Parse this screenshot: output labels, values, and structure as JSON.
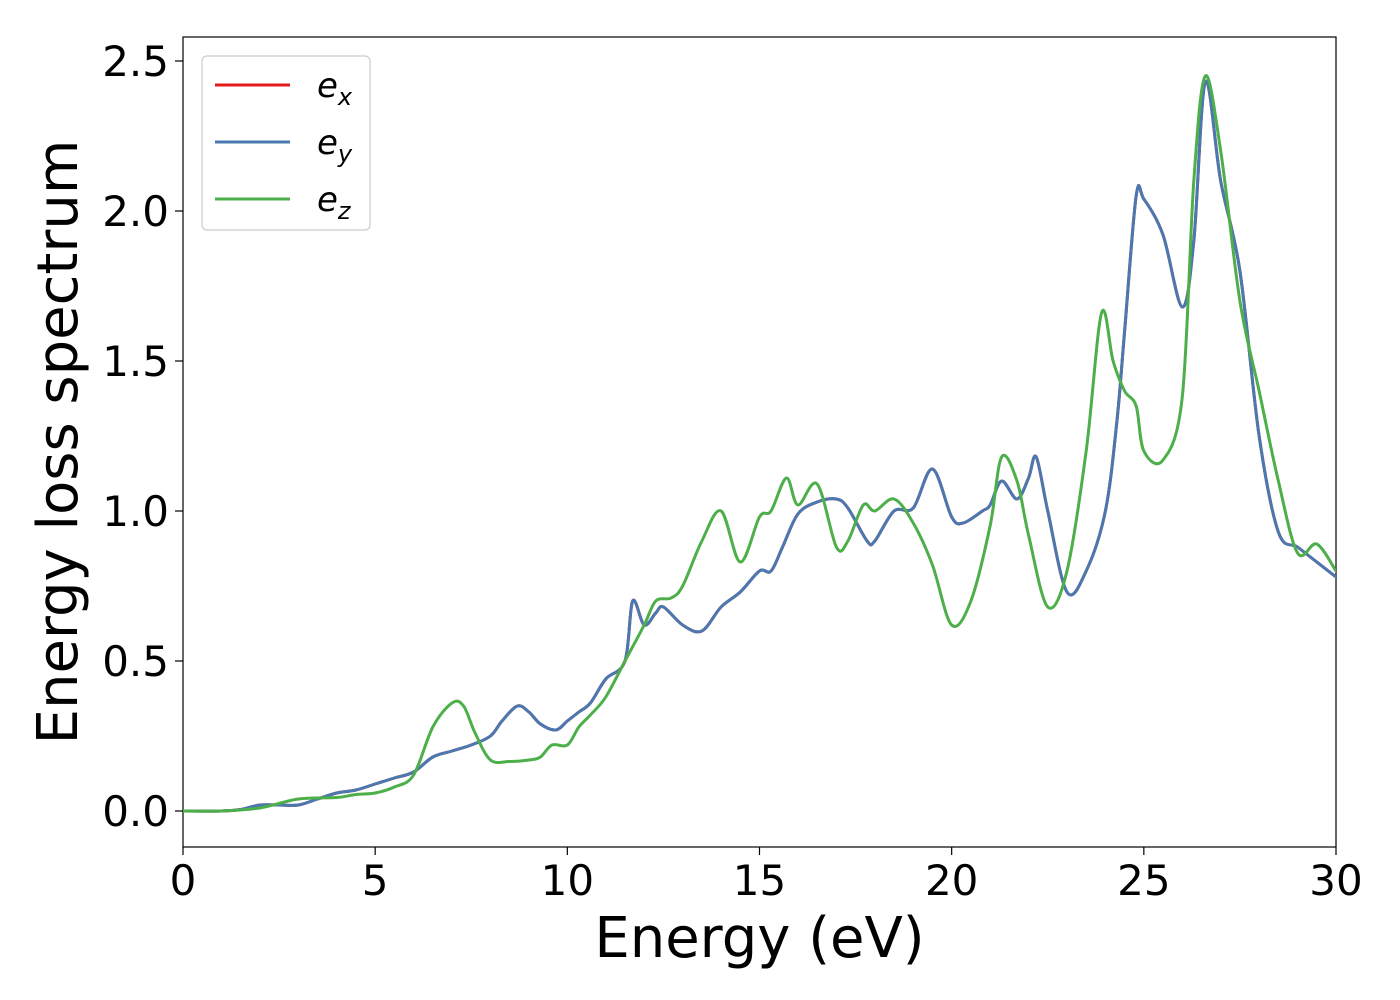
{
  "chart_data": {
    "type": "line",
    "xlabel": "Energy (eV)",
    "ylabel": "Energy loss spectrum",
    "xlim": [
      0,
      30
    ],
    "ylim": [
      -0.12,
      2.58
    ],
    "xticks": [
      "0",
      "5",
      "10",
      "15",
      "20",
      "25",
      "30"
    ],
    "yticks": [
      "0.0",
      "0.5",
      "1.0",
      "1.5",
      "2.0",
      "2.5"
    ],
    "grid": false,
    "legend_position": "top-left",
    "series": [
      {
        "name": "e",
        "subscript": "x",
        "color": "#e41a1c",
        "x": [
          0,
          1,
          1.5,
          2,
          2.5,
          3,
          3.5,
          4,
          4.5,
          5,
          5.5,
          6,
          6.5,
          7,
          7.5,
          8,
          8.3,
          8.7,
          9,
          9.3,
          9.7,
          10,
          10.3,
          10.6,
          11,
          11.5,
          11.7,
          12,
          12.3,
          12.5,
          13,
          13.5,
          14,
          14.5,
          15,
          15.3,
          15.6,
          16,
          16.5,
          17,
          17.3,
          17.8,
          18,
          18.5,
          19,
          19.5,
          20,
          20.3,
          20.8,
          21,
          21.3,
          21.7,
          22,
          22.2,
          22.5,
          23,
          23.5,
          24,
          24.3,
          24.5,
          24.8,
          25,
          25.5,
          26,
          26.3,
          26.6,
          27,
          27.5,
          28,
          28.5,
          29,
          29.5,
          30
        ],
        "values": [
          0,
          0,
          0.005,
          0.02,
          0.02,
          0.02,
          0.04,
          0.06,
          0.07,
          0.09,
          0.11,
          0.13,
          0.18,
          0.2,
          0.22,
          0.25,
          0.3,
          0.35,
          0.33,
          0.29,
          0.27,
          0.3,
          0.33,
          0.36,
          0.44,
          0.5,
          0.7,
          0.62,
          0.66,
          0.68,
          0.62,
          0.6,
          0.68,
          0.73,
          0.8,
          0.8,
          0.88,
          0.99,
          1.03,
          1.04,
          1.01,
          0.9,
          0.9,
          1.0,
          1.01,
          1.14,
          0.98,
          0.96,
          1.0,
          1.02,
          1.1,
          1.04,
          1.11,
          1.18,
          1.0,
          0.73,
          0.8,
          1.0,
          1.3,
          1.6,
          2.05,
          2.04,
          1.92,
          1.68,
          1.9,
          2.43,
          2.1,
          1.8,
          1.25,
          0.93,
          0.88,
          0.83,
          0.78
        ]
      },
      {
        "name": "e",
        "subscript": "y",
        "color": "#4a78b0",
        "x": [
          0,
          1,
          1.5,
          2,
          2.5,
          3,
          3.5,
          4,
          4.5,
          5,
          5.5,
          6,
          6.5,
          7,
          7.5,
          8,
          8.3,
          8.7,
          9,
          9.3,
          9.7,
          10,
          10.3,
          10.6,
          11,
          11.5,
          11.7,
          12,
          12.3,
          12.5,
          13,
          13.5,
          14,
          14.5,
          15,
          15.3,
          15.6,
          16,
          16.5,
          17,
          17.3,
          17.8,
          18,
          18.5,
          19,
          19.5,
          20,
          20.3,
          20.8,
          21,
          21.3,
          21.7,
          22,
          22.2,
          22.5,
          23,
          23.5,
          24,
          24.3,
          24.5,
          24.8,
          25,
          25.5,
          26,
          26.3,
          26.6,
          27,
          27.5,
          28,
          28.5,
          29,
          29.5,
          30
        ],
        "values": [
          0,
          0,
          0.005,
          0.02,
          0.02,
          0.02,
          0.04,
          0.06,
          0.07,
          0.09,
          0.11,
          0.13,
          0.18,
          0.2,
          0.22,
          0.25,
          0.3,
          0.35,
          0.33,
          0.29,
          0.27,
          0.3,
          0.33,
          0.36,
          0.44,
          0.5,
          0.7,
          0.62,
          0.66,
          0.68,
          0.62,
          0.6,
          0.68,
          0.73,
          0.8,
          0.8,
          0.88,
          0.99,
          1.03,
          1.04,
          1.01,
          0.9,
          0.9,
          1.0,
          1.01,
          1.14,
          0.98,
          0.96,
          1.0,
          1.02,
          1.1,
          1.04,
          1.11,
          1.18,
          1.0,
          0.73,
          0.8,
          1.0,
          1.3,
          1.6,
          2.05,
          2.04,
          1.92,
          1.68,
          1.9,
          2.43,
          2.1,
          1.8,
          1.25,
          0.93,
          0.88,
          0.83,
          0.78
        ]
      },
      {
        "name": "e",
        "subscript": "z",
        "color": "#4daf4a",
        "x": [
          0,
          1,
          2,
          3,
          4,
          4.5,
          5,
          5.5,
          6,
          6.5,
          7,
          7.3,
          7.6,
          8,
          8.5,
          9,
          9.3,
          9.6,
          10,
          10.3,
          10.6,
          11,
          11.5,
          12,
          12.3,
          12.7,
          13,
          13.5,
          14,
          14.5,
          15,
          15.3,
          15.7,
          16,
          16.5,
          17,
          17.3,
          17.7,
          18,
          18.5,
          19,
          19.5,
          20,
          20.5,
          21,
          21.3,
          21.7,
          22,
          22.5,
          23,
          23.5,
          23.9,
          24.2,
          24.5,
          24.8,
          25,
          25.5,
          26,
          26.3,
          26.6,
          27,
          27.5,
          28,
          28.5,
          29,
          29.5,
          30
        ],
        "values": [
          0,
          0,
          0.01,
          0.04,
          0.045,
          0.055,
          0.06,
          0.08,
          0.12,
          0.28,
          0.36,
          0.35,
          0.26,
          0.17,
          0.165,
          0.17,
          0.18,
          0.22,
          0.22,
          0.28,
          0.32,
          0.38,
          0.5,
          0.62,
          0.7,
          0.71,
          0.75,
          0.9,
          1.0,
          0.83,
          0.98,
          1.0,
          1.11,
          1.02,
          1.09,
          0.88,
          0.9,
          1.02,
          1.0,
          1.04,
          0.96,
          0.82,
          0.62,
          0.7,
          0.95,
          1.18,
          1.1,
          0.92,
          0.68,
          0.8,
          1.2,
          1.66,
          1.5,
          1.4,
          1.35,
          1.2,
          1.17,
          1.38,
          2.1,
          2.45,
          2.2,
          1.7,
          1.4,
          1.1,
          0.86,
          0.89,
          0.8
        ]
      }
    ]
  }
}
